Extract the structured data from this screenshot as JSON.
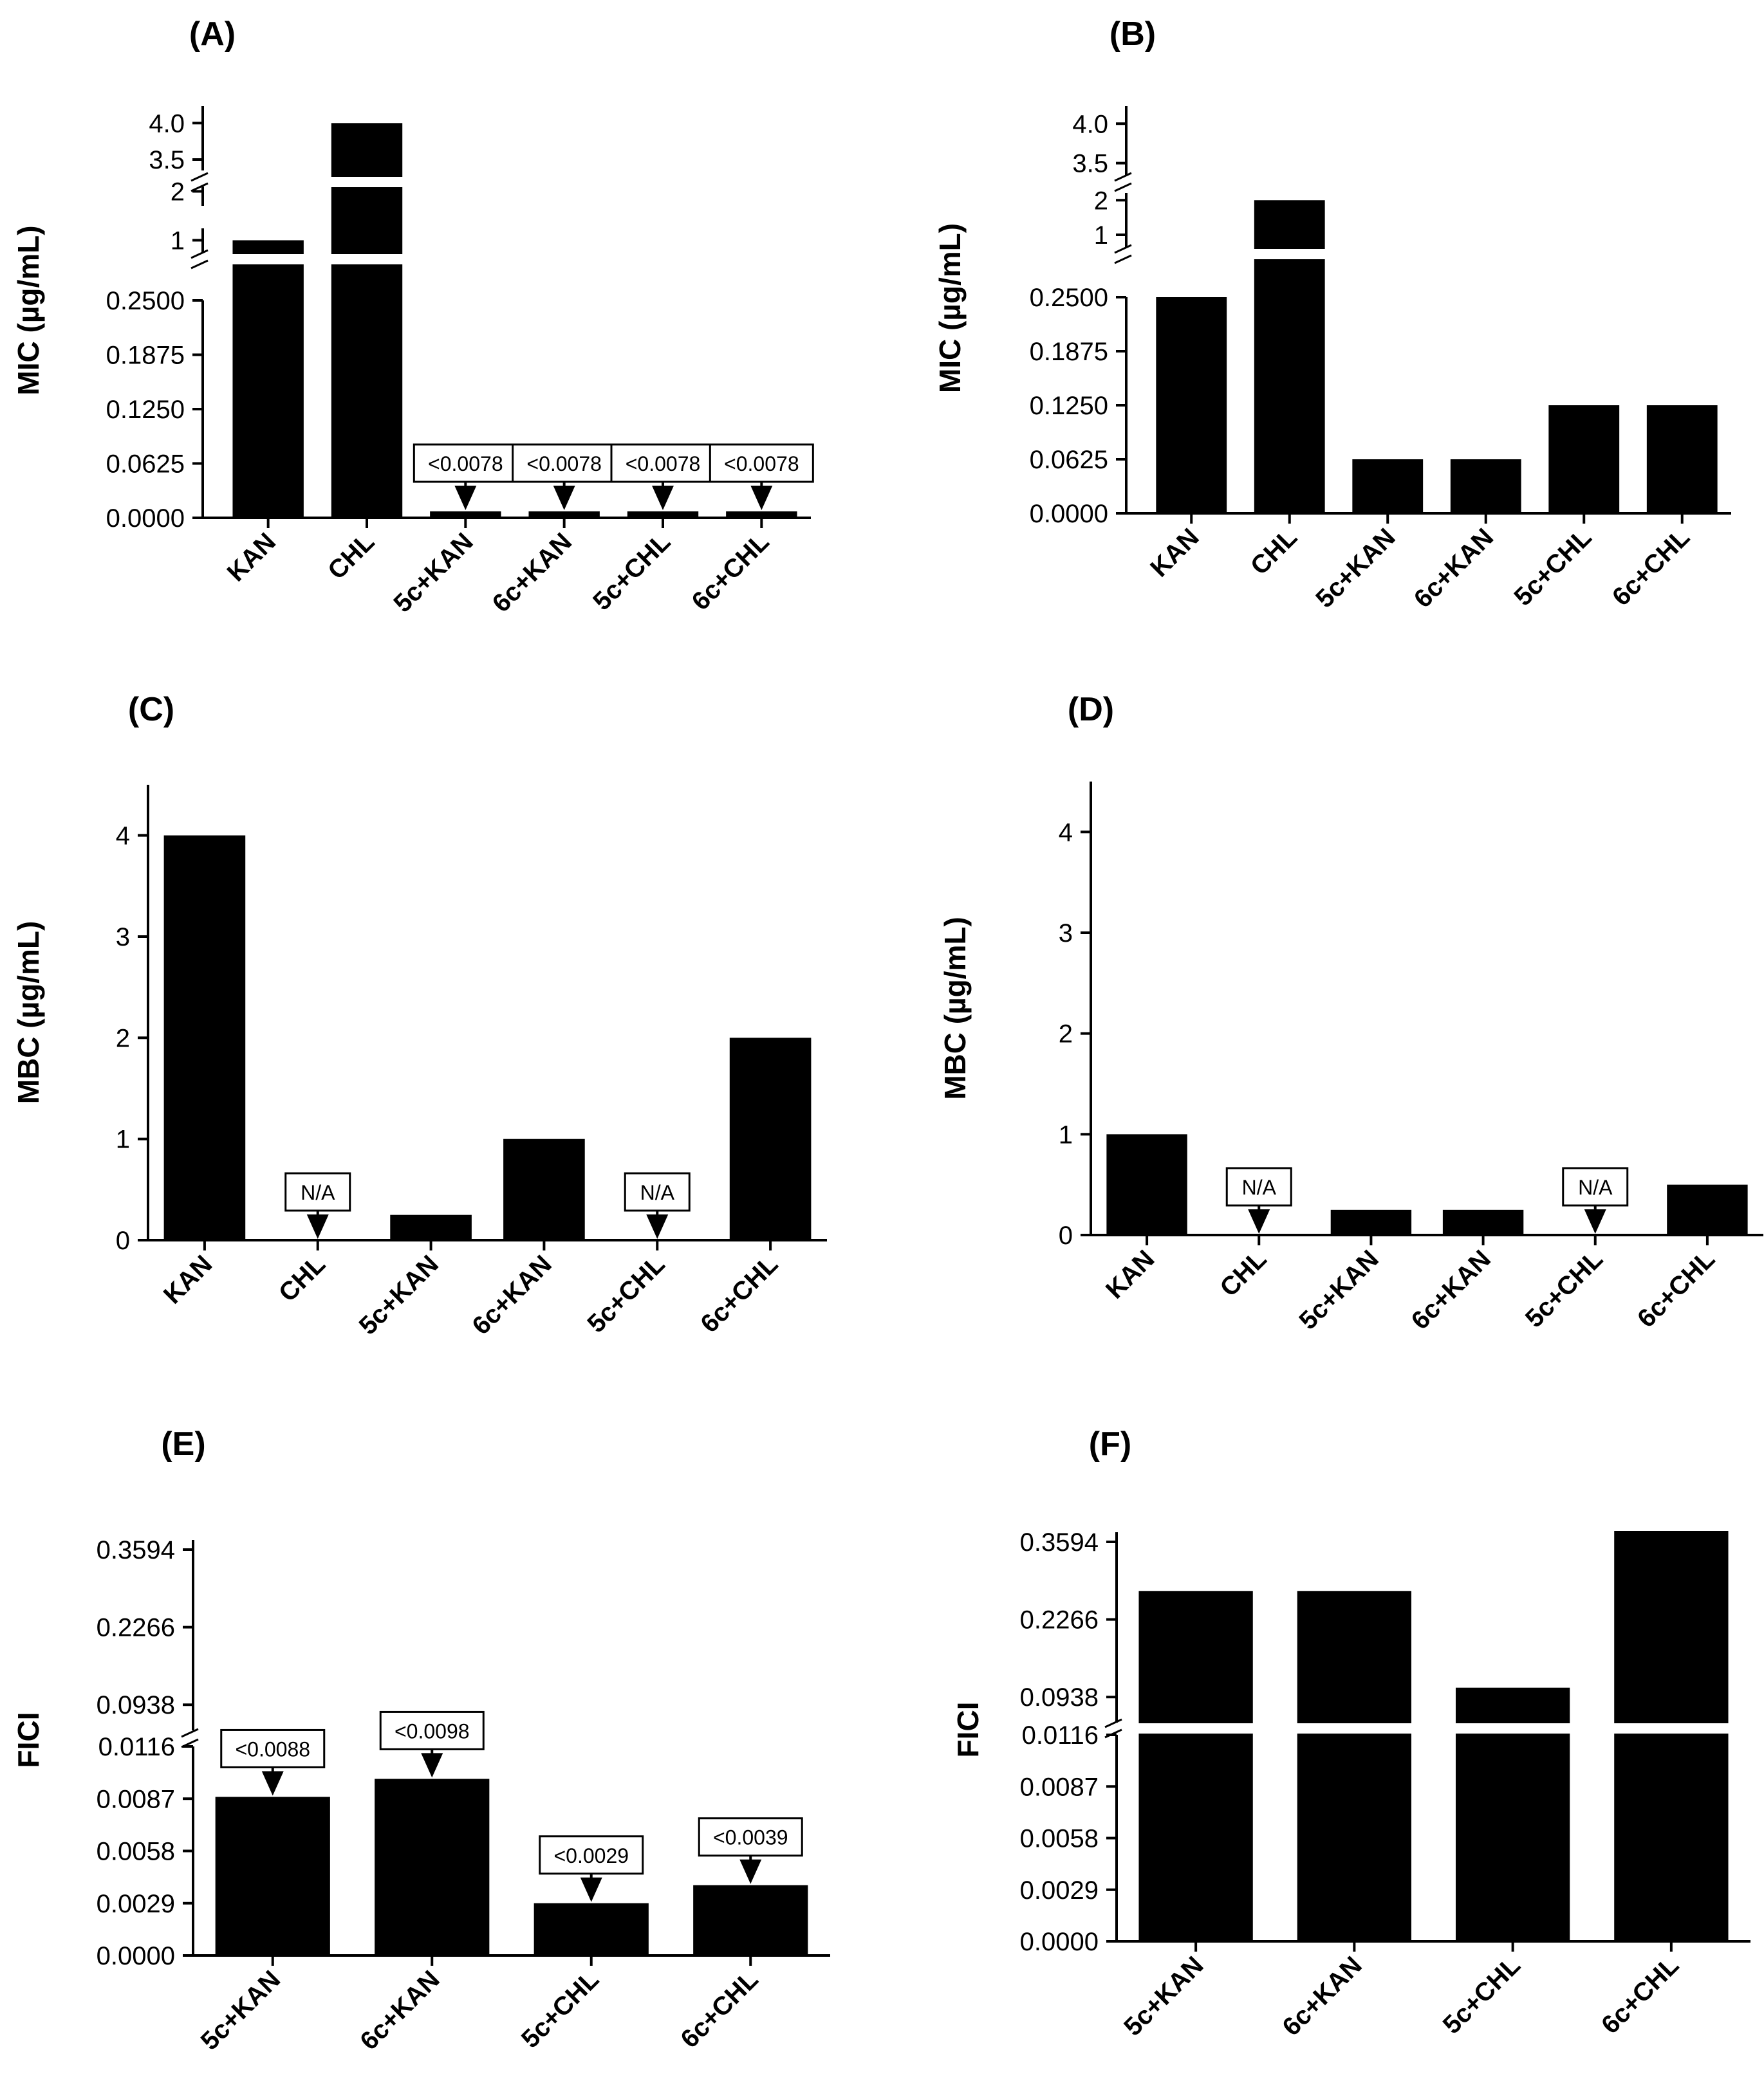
{
  "chart_data": [
    {
      "type": "bar",
      "panel": "(A)",
      "ylabel": "MIC (µg/mL)",
      "y_scale": "broken",
      "y_ticks": [
        "0.0000",
        "0.0625",
        "0.1250",
        "0.1875",
        "0.2500",
        "1",
        "2",
        "3.5",
        "4.0"
      ],
      "categories": [
        "KAN",
        "CHL",
        "5c+KAN",
        "6c+KAN",
        "5c+CHL",
        "6c+CHL"
      ],
      "values": [
        1,
        4,
        0.0039,
        0.0039,
        0.0039,
        0.0039
      ],
      "annotations": [
        "",
        "",
        "<0.0078",
        "<0.0078",
        "<0.0078",
        "<0.0078"
      ]
    },
    {
      "type": "bar",
      "panel": "(B)",
      "ylabel": "MIC (µg/mL)",
      "y_scale": "broken",
      "y_ticks": [
        "0.0000",
        "0.0625",
        "0.1250",
        "0.1875",
        "0.2500",
        "1",
        "2",
        "3.5",
        "4.0"
      ],
      "categories": [
        "KAN",
        "CHL",
        "5c+KAN",
        "6c+KAN",
        "5c+CHL",
        "6c+CHL"
      ],
      "values": [
        0.25,
        2,
        0.0625,
        0.0625,
        0.125,
        0.125
      ],
      "annotations": [
        "",
        "",
        "",
        "",
        "",
        ""
      ]
    },
    {
      "type": "bar",
      "panel": "(C)",
      "ylabel": "MBC (µg/mL)",
      "y_scale": "linear",
      "y_ticks": [
        "0",
        "1",
        "2",
        "3",
        "4"
      ],
      "ylim": [
        0,
        4.5
      ],
      "categories": [
        "KAN",
        "CHL",
        "5c+KAN",
        "6c+KAN",
        "5c+CHL",
        "6c+CHL"
      ],
      "values": [
        4,
        0,
        0.25,
        1,
        0,
        2
      ],
      "annotations": [
        "",
        "N/A",
        "",
        "",
        "N/A",
        ""
      ]
    },
    {
      "type": "bar",
      "panel": "(D)",
      "ylabel": "MBC (µg/mL)",
      "y_scale": "linear",
      "y_ticks": [
        "0",
        "1",
        "2",
        "3",
        "4"
      ],
      "ylim": [
        0,
        4.5
      ],
      "categories": [
        "KAN",
        "CHL",
        "5c+KAN",
        "6c+KAN",
        "5c+CHL",
        "6c+CHL"
      ],
      "values": [
        1,
        0,
        0.25,
        0.25,
        0,
        0.5
      ],
      "annotations": [
        "",
        "N/A",
        "",
        "",
        "N/A",
        ""
      ]
    },
    {
      "type": "bar",
      "panel": "(E)",
      "ylabel": "FICI",
      "y_scale": "broken",
      "y_ticks": [
        "0.0000",
        "0.0029",
        "0.0058",
        "0.0087",
        "0.0116",
        "0.0938",
        "0.2266",
        "0.3594"
      ],
      "categories": [
        "5c+KAN",
        "6c+KAN",
        "5c+CHL",
        "6c+CHL"
      ],
      "values": [
        0.0088,
        0.0098,
        0.0029,
        0.0039
      ],
      "annotations": [
        "<0.0088",
        "<0.0098",
        "<0.0029",
        "<0.0039"
      ]
    },
    {
      "type": "bar",
      "panel": "(F)",
      "ylabel": "FICI",
      "y_scale": "broken",
      "y_ticks": [
        "0.0000",
        "0.0029",
        "0.0058",
        "0.0087",
        "0.0116",
        "0.0938",
        "0.2266",
        "0.3594"
      ],
      "categories": [
        "5c+KAN",
        "6c+KAN",
        "5c+CHL",
        "6c+CHL"
      ],
      "values": [
        0.2754,
        0.2754,
        0.1098,
        0.3711
      ],
      "annotations": [
        "",
        "",
        "",
        ""
      ]
    }
  ]
}
